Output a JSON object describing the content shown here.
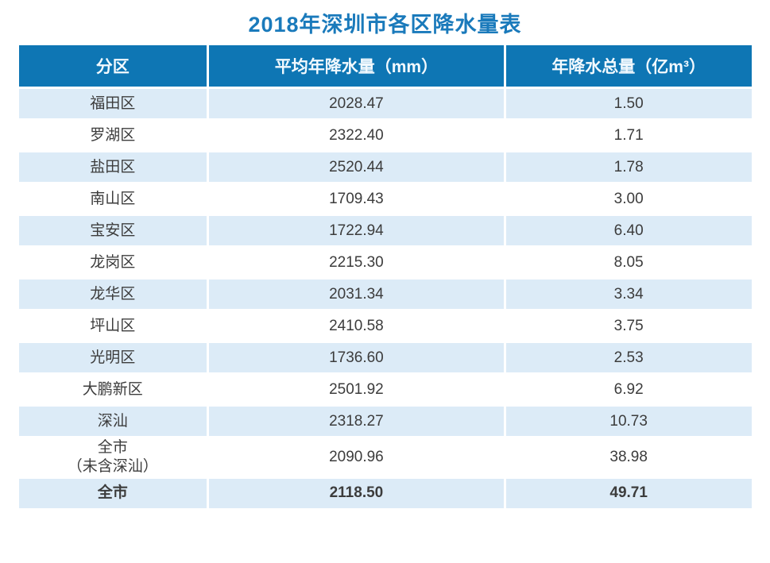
{
  "page": {
    "title": "2018年深圳市各区降水量表"
  },
  "colors": {
    "title_color": "#1a7abb",
    "header_bg": "#0e76b4",
    "header_text": "#f2f9fe",
    "alt_row_bg": "#dcebf7",
    "body_text": "#3c3c3c"
  },
  "table": {
    "columns": [
      "分区",
      "平均年降水量（mm）",
      "年降水总量（亿m³）"
    ],
    "rows": [
      {
        "district": "福田区",
        "avg": "2028.47",
        "total": "1.50"
      },
      {
        "district": "罗湖区",
        "avg": "2322.40",
        "total": "1.71"
      },
      {
        "district": "盐田区",
        "avg": "2520.44",
        "total": "1.78"
      },
      {
        "district": "南山区",
        "avg": "1709.43",
        "total": "3.00"
      },
      {
        "district": "宝安区",
        "avg": "1722.94",
        "total": "6.40"
      },
      {
        "district": "龙岗区",
        "avg": "2215.30",
        "total": "8.05"
      },
      {
        "district": "龙华区",
        "avg": "2031.34",
        "total": "3.34"
      },
      {
        "district": "坪山区",
        "avg": "2410.58",
        "total": "3.75"
      },
      {
        "district": "光明区",
        "avg": "1736.60",
        "total": "2.53"
      },
      {
        "district": "大鹏新区",
        "avg": "2501.92",
        "total": "6.92"
      },
      {
        "district": "深汕",
        "avg": "2318.27",
        "total": "10.73"
      },
      {
        "district": "全市\n（未含深汕）",
        "avg": "2090.96",
        "total": "38.98"
      },
      {
        "district": "全市",
        "avg": "2118.50",
        "total": "49.71"
      }
    ]
  },
  "chart_data": {
    "type": "table",
    "title": "2018年深圳市各区降水量表",
    "columns": [
      "分区",
      "平均年降水量（mm）",
      "年降水总量（亿m³）"
    ],
    "categories": [
      "福田区",
      "罗湖区",
      "盐田区",
      "南山区",
      "宝安区",
      "龙岗区",
      "龙华区",
      "坪山区",
      "光明区",
      "大鹏新区",
      "深汕",
      "全市（未含深汕）",
      "全市"
    ],
    "series": [
      {
        "name": "平均年降水量（mm）",
        "values": [
          2028.47,
          2322.4,
          2520.44,
          1709.43,
          1722.94,
          2215.3,
          2031.34,
          2410.58,
          1736.6,
          2501.92,
          2318.27,
          2090.96,
          2118.5
        ]
      },
      {
        "name": "年降水总量（亿m³）",
        "values": [
          1.5,
          1.71,
          1.78,
          3.0,
          6.4,
          8.05,
          3.34,
          3.75,
          2.53,
          6.92,
          10.73,
          38.98,
          49.71
        ]
      }
    ],
    "layout_hints": {
      "header_bg": "#0e76b4",
      "zebra_striping": true,
      "alt_row_bg": "#dcebf7",
      "last_row_bold": true
    }
  }
}
